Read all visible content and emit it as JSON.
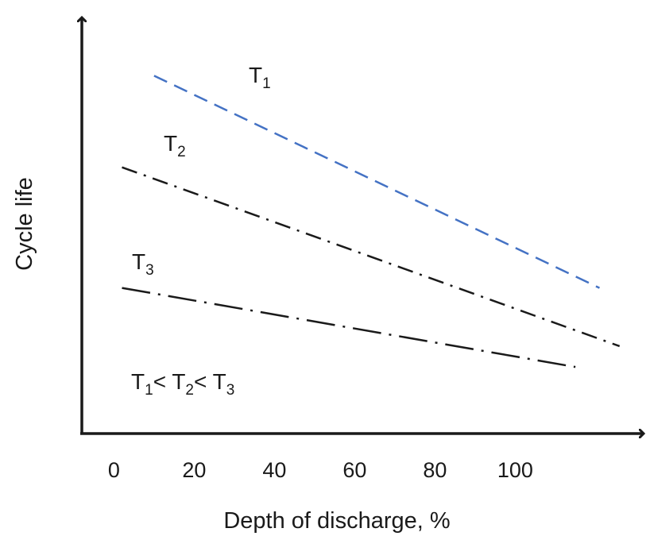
{
  "chart_data": {
    "type": "line",
    "title": "",
    "xlabel": "Depth of discharge, %",
    "ylabel": "Cycle life",
    "x_ticks": [
      "0",
      "20",
      "40",
      "60",
      "80",
      "100"
    ],
    "xlim": [
      -8,
      132
    ],
    "ylim": [
      0,
      100
    ],
    "y_ticks_shown": false,
    "grid": false,
    "legend": "none",
    "series": [
      {
        "name": "T1",
        "main": "T",
        "sub": "1",
        "color": "#4472c4",
        "dash": "dashed",
        "x": [
          10,
          121
        ],
        "y": [
          86,
          35
        ]
      },
      {
        "name": "T2",
        "main": "T",
        "sub": "2",
        "color": "#1a1a1a",
        "dash": "dash-dot",
        "x": [
          2,
          126
        ],
        "y": [
          64,
          21
        ]
      },
      {
        "name": "T3",
        "main": "T",
        "sub": "3",
        "color": "#1a1a1a",
        "dash": "long-dash-dot",
        "x": [
          2,
          115
        ],
        "y": [
          35,
          16
        ]
      }
    ],
    "annotation": {
      "parts": [
        {
          "main": "T",
          "sub": "1"
        },
        {
          "main": "< T",
          "sub": "2"
        },
        {
          "main": "< T",
          "sub": "3"
        }
      ]
    }
  }
}
